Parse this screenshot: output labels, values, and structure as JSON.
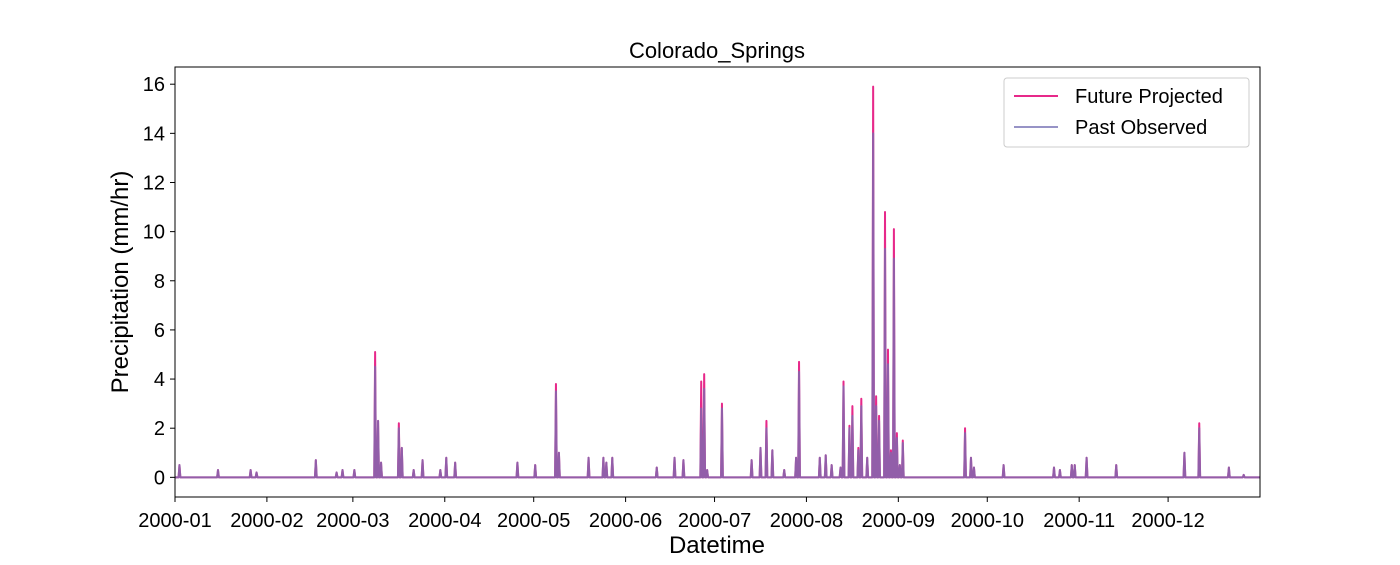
{
  "chart_data": {
    "type": "line",
    "title": "Colorado_Springs",
    "xlabel": "Datetime",
    "ylabel": "Precipitation (mm/hr)",
    "xlim": [
      "2000-01-01",
      "2000-12-31"
    ],
    "ylim": [
      -0.8,
      16.7
    ],
    "yticks": [
      0,
      2,
      4,
      6,
      8,
      10,
      12,
      14,
      16
    ],
    "xticks": [
      "2000-01",
      "2000-02",
      "2000-03",
      "2000-04",
      "2000-05",
      "2000-06",
      "2000-07",
      "2000-08",
      "2000-09",
      "2000-10",
      "2000-11",
      "2000-12"
    ],
    "legend_position": "top-right",
    "grid": false,
    "series": [
      {
        "name": "Future Projected",
        "color": "#e7298a",
        "points": [
          [
            "2000-01-02",
            0.5
          ],
          [
            "2000-01-15",
            0.3
          ],
          [
            "2000-01-26",
            0.3
          ],
          [
            "2000-01-28",
            0.2
          ],
          [
            "2000-02-17",
            0.7
          ],
          [
            "2000-02-24",
            0.2
          ],
          [
            "2000-02-26",
            0.3
          ],
          [
            "2000-03-01",
            0.3
          ],
          [
            "2000-03-08",
            5.1
          ],
          [
            "2000-03-09",
            2.3
          ],
          [
            "2000-03-10",
            0.6
          ],
          [
            "2000-03-16",
            2.2
          ],
          [
            "2000-03-17",
            1.2
          ],
          [
            "2000-03-21",
            0.3
          ],
          [
            "2000-03-24",
            0.7
          ],
          [
            "2000-03-30",
            0.3
          ],
          [
            "2000-04-01",
            0.8
          ],
          [
            "2000-04-04",
            0.6
          ],
          [
            "2000-04-25",
            0.6
          ],
          [
            "2000-05-01",
            0.5
          ],
          [
            "2000-05-08",
            3.8
          ],
          [
            "2000-05-09",
            1.0
          ],
          [
            "2000-05-19",
            0.8
          ],
          [
            "2000-05-24",
            0.8
          ],
          [
            "2000-05-25",
            0.6
          ],
          [
            "2000-05-27",
            0.8
          ],
          [
            "2000-06-11",
            0.4
          ],
          [
            "2000-06-17",
            0.8
          ],
          [
            "2000-06-20",
            0.7
          ],
          [
            "2000-06-26",
            3.9
          ],
          [
            "2000-06-27",
            4.2
          ],
          [
            "2000-06-28",
            0.3
          ],
          [
            "2000-07-03",
            3.0
          ],
          [
            "2000-07-13",
            0.7
          ],
          [
            "2000-07-16",
            1.2
          ],
          [
            "2000-07-18",
            2.3
          ],
          [
            "2000-07-20",
            1.1
          ],
          [
            "2000-07-24",
            0.3
          ],
          [
            "2000-07-28",
            0.8
          ],
          [
            "2000-07-29",
            4.7
          ],
          [
            "2000-08-05",
            0.8
          ],
          [
            "2000-08-07",
            0.9
          ],
          [
            "2000-08-09",
            0.5
          ],
          [
            "2000-08-12",
            0.4
          ],
          [
            "2000-08-13",
            3.9
          ],
          [
            "2000-08-15",
            2.1
          ],
          [
            "2000-08-16",
            2.9
          ],
          [
            "2000-08-18",
            1.2
          ],
          [
            "2000-08-19",
            3.2
          ],
          [
            "2000-08-21",
            0.8
          ],
          [
            "2000-08-23",
            15.9
          ],
          [
            "2000-08-24",
            3.3
          ],
          [
            "2000-08-25",
            2.5
          ],
          [
            "2000-08-27",
            10.8
          ],
          [
            "2000-08-28",
            5.2
          ],
          [
            "2000-08-29",
            1.1
          ],
          [
            "2000-08-30",
            10.1
          ],
          [
            "2000-08-31",
            1.8
          ],
          [
            "2000-09-01",
            0.5
          ],
          [
            "2000-09-02",
            1.5
          ],
          [
            "2000-09-23",
            2.0
          ],
          [
            "2000-09-25",
            0.8
          ],
          [
            "2000-09-26",
            0.4
          ],
          [
            "2000-10-06",
            0.5
          ],
          [
            "2000-10-23",
            0.4
          ],
          [
            "2000-10-25",
            0.3
          ],
          [
            "2000-10-29",
            0.5
          ],
          [
            "2000-10-30",
            0.5
          ],
          [
            "2000-11-03",
            0.8
          ],
          [
            "2000-11-13",
            0.5
          ],
          [
            "2000-12-06",
            1.0
          ],
          [
            "2000-12-11",
            2.2
          ],
          [
            "2000-12-21",
            0.4
          ],
          [
            "2000-12-26",
            0.1
          ]
        ]
      },
      {
        "name": "Past Observed",
        "color": "#7570b3",
        "points": [
          [
            "2000-01-02",
            0.5
          ],
          [
            "2000-01-15",
            0.3
          ],
          [
            "2000-01-26",
            0.3
          ],
          [
            "2000-01-28",
            0.2
          ],
          [
            "2000-02-17",
            0.7
          ],
          [
            "2000-02-24",
            0.2
          ],
          [
            "2000-02-26",
            0.3
          ],
          [
            "2000-03-01",
            0.3
          ],
          [
            "2000-03-08",
            4.5
          ],
          [
            "2000-03-09",
            2.3
          ],
          [
            "2000-03-10",
            0.6
          ],
          [
            "2000-03-16",
            2.0
          ],
          [
            "2000-03-17",
            1.2
          ],
          [
            "2000-03-21",
            0.3
          ],
          [
            "2000-03-24",
            0.7
          ],
          [
            "2000-03-30",
            0.3
          ],
          [
            "2000-04-01",
            0.8
          ],
          [
            "2000-04-04",
            0.6
          ],
          [
            "2000-04-25",
            0.6
          ],
          [
            "2000-05-01",
            0.5
          ],
          [
            "2000-05-08",
            3.5
          ],
          [
            "2000-05-09",
            1.0
          ],
          [
            "2000-05-19",
            0.8
          ],
          [
            "2000-05-24",
            0.8
          ],
          [
            "2000-05-25",
            0.6
          ],
          [
            "2000-05-27",
            0.8
          ],
          [
            "2000-06-11",
            0.4
          ],
          [
            "2000-06-17",
            0.8
          ],
          [
            "2000-06-20",
            0.7
          ],
          [
            "2000-06-26",
            2.8
          ],
          [
            "2000-06-27",
            3.6
          ],
          [
            "2000-06-28",
            0.3
          ],
          [
            "2000-07-03",
            2.8
          ],
          [
            "2000-07-13",
            0.7
          ],
          [
            "2000-07-16",
            1.2
          ],
          [
            "2000-07-18",
            2.0
          ],
          [
            "2000-07-20",
            1.1
          ],
          [
            "2000-07-24",
            0.3
          ],
          [
            "2000-07-28",
            0.8
          ],
          [
            "2000-07-29",
            4.3
          ],
          [
            "2000-08-05",
            0.8
          ],
          [
            "2000-08-07",
            0.9
          ],
          [
            "2000-08-09",
            0.5
          ],
          [
            "2000-08-12",
            0.4
          ],
          [
            "2000-08-13",
            3.7
          ],
          [
            "2000-08-15",
            2.0
          ],
          [
            "2000-08-16",
            2.5
          ],
          [
            "2000-08-18",
            1.1
          ],
          [
            "2000-08-19",
            2.9
          ],
          [
            "2000-08-21",
            0.8
          ],
          [
            "2000-08-23",
            14.0
          ],
          [
            "2000-08-24",
            2.9
          ],
          [
            "2000-08-25",
            2.3
          ],
          [
            "2000-08-27",
            9.3
          ],
          [
            "2000-08-28",
            4.6
          ],
          [
            "2000-08-29",
            1.0
          ],
          [
            "2000-08-30",
            8.9
          ],
          [
            "2000-08-31",
            1.6
          ],
          [
            "2000-09-01",
            0.5
          ],
          [
            "2000-09-02",
            1.4
          ],
          [
            "2000-09-23",
            1.8
          ],
          [
            "2000-09-25",
            0.8
          ],
          [
            "2000-09-26",
            0.4
          ],
          [
            "2000-10-06",
            0.5
          ],
          [
            "2000-10-23",
            0.4
          ],
          [
            "2000-10-25",
            0.3
          ],
          [
            "2000-10-29",
            0.5
          ],
          [
            "2000-10-30",
            0.5
          ],
          [
            "2000-11-03",
            0.8
          ],
          [
            "2000-11-13",
            0.5
          ],
          [
            "2000-12-06",
            1.0
          ],
          [
            "2000-12-11",
            2.0
          ],
          [
            "2000-12-21",
            0.4
          ],
          [
            "2000-12-26",
            0.1
          ]
        ]
      }
    ]
  }
}
